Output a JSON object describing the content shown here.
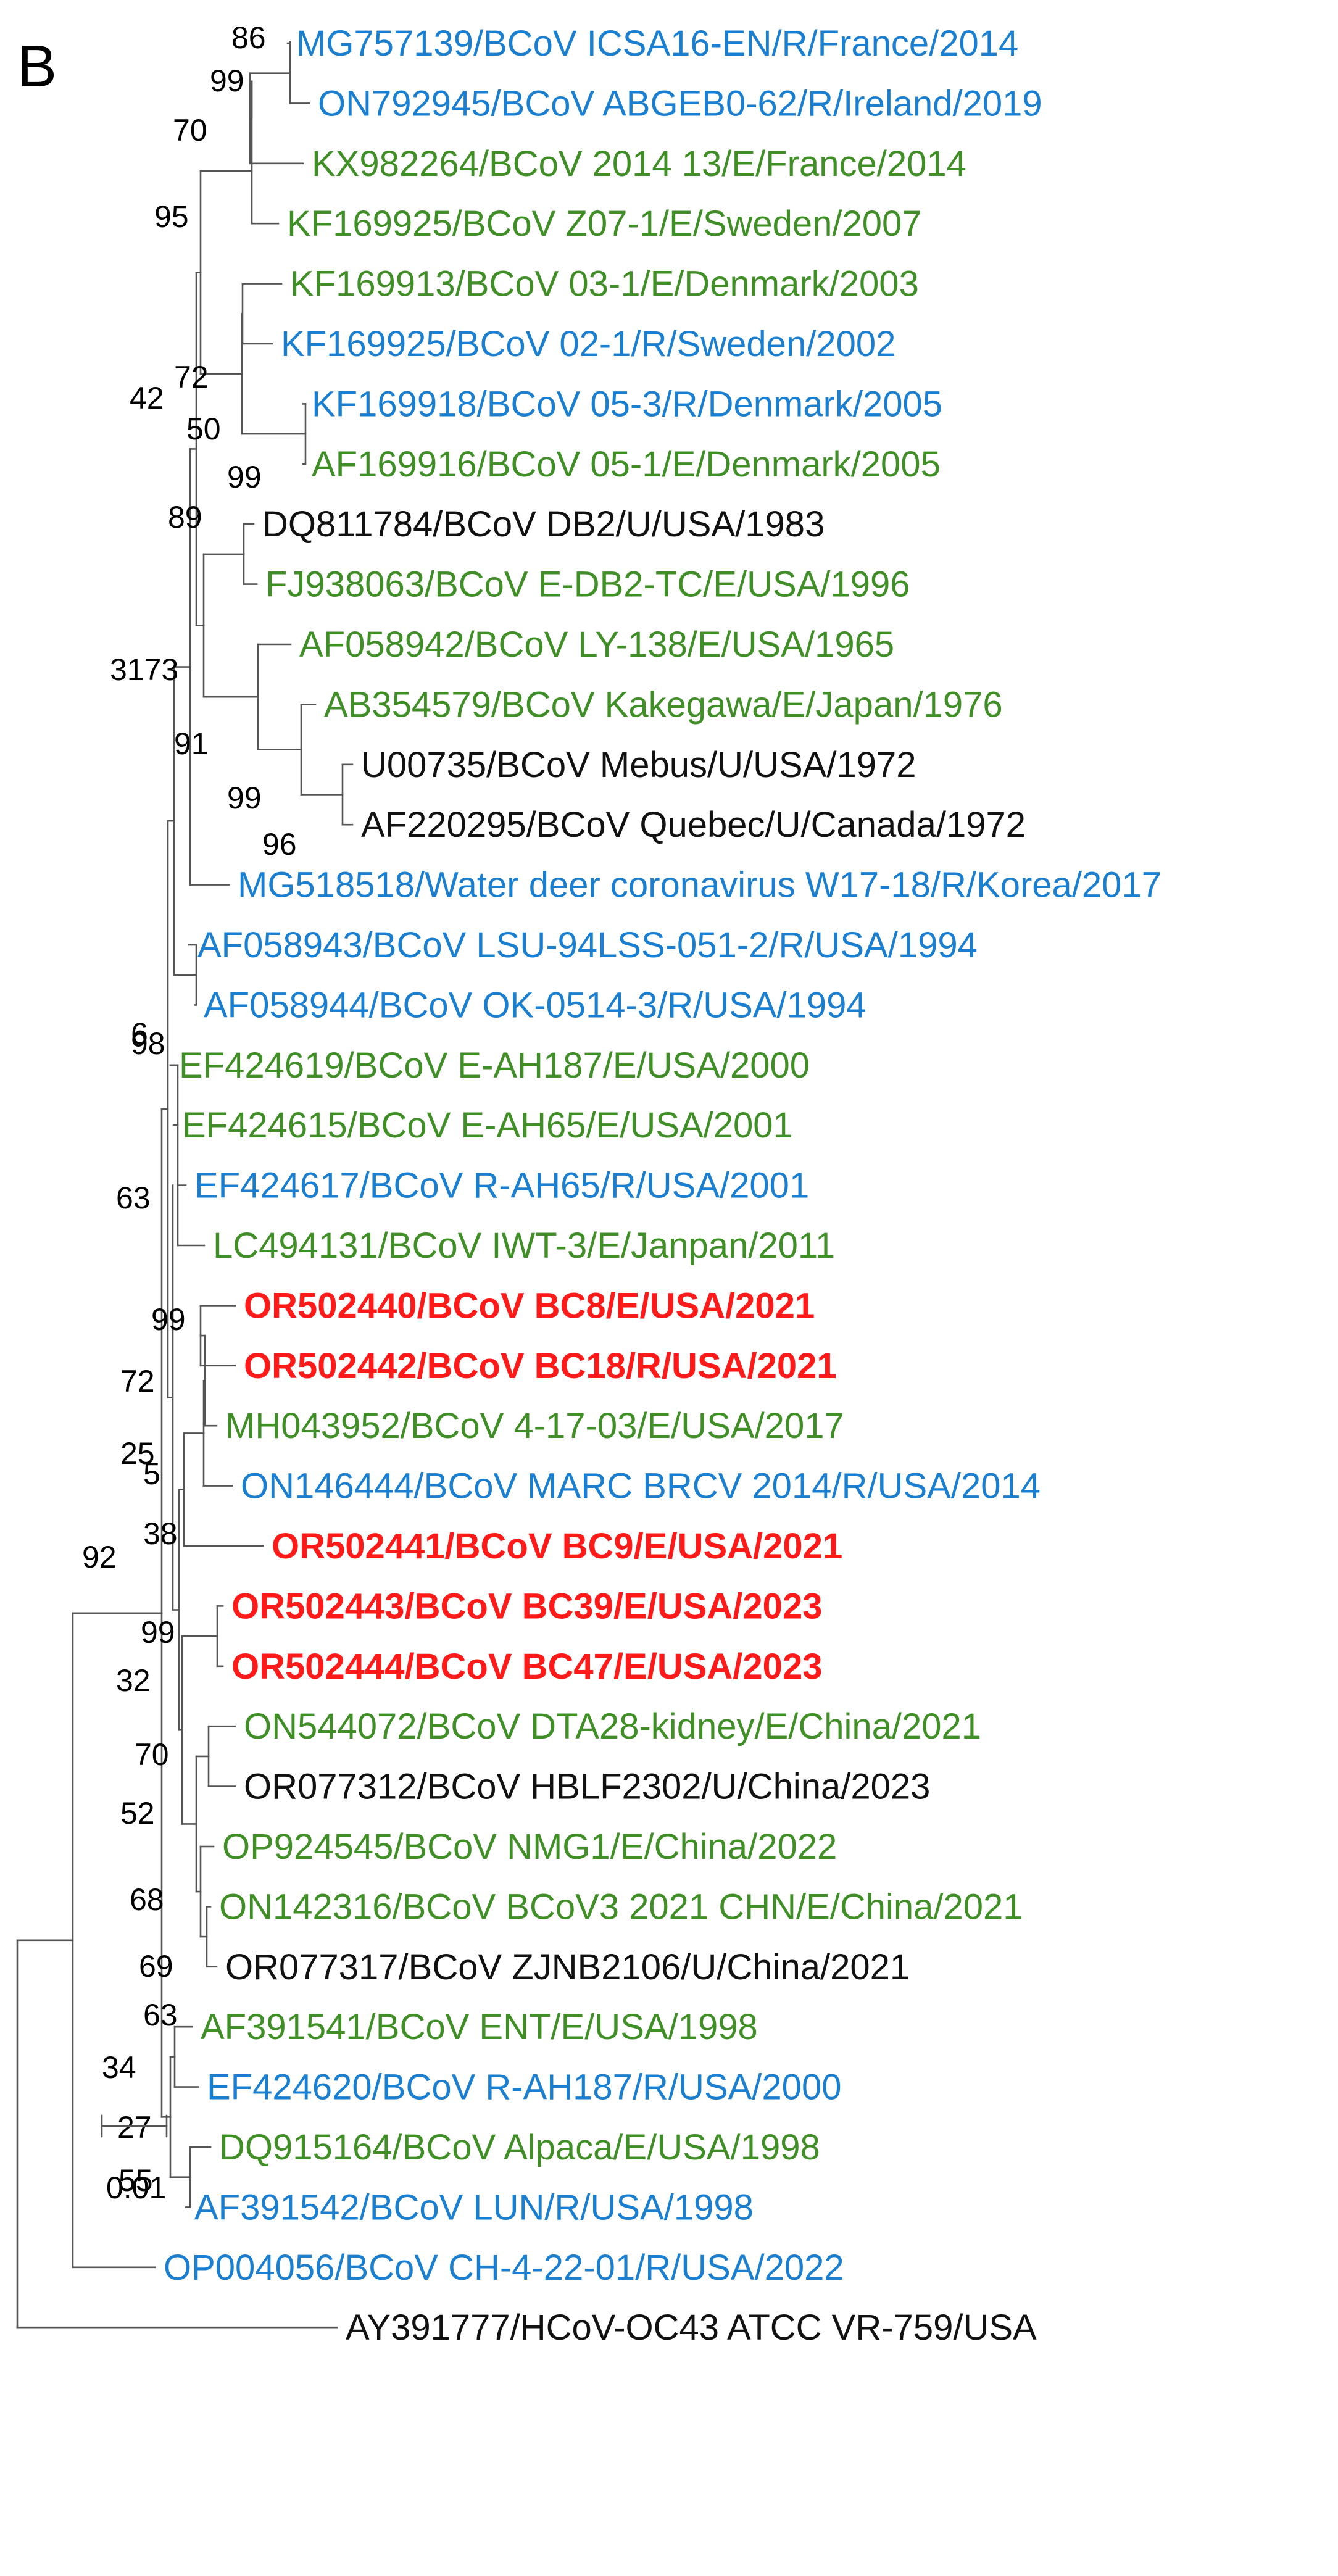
{
  "panel_label": "B",
  "colors": {
    "R": "#1a7fd0",
    "E": "#3f8f26",
    "U": "#111111",
    "new": "#ff1a1a",
    "branch": "#555555"
  },
  "scale_label": "0.01",
  "taxa": [
    {
      "label": "MG757139/BCoV ICSA16-EN/R/France/2014",
      "group": "R"
    },
    {
      "label": "ON792945/BCoV ABGEB0-62/R/Ireland/2019",
      "group": "R"
    },
    {
      "label": "KX982264/BCoV 2014 13/E/France/2014",
      "group": "E"
    },
    {
      "label": "KF169925/BCoV Z07-1/E/Sweden/2007",
      "group": "E"
    },
    {
      "label": "KF169913/BCoV 03-1/E/Denmark/2003",
      "group": "E"
    },
    {
      "label": "KF169925/BCoV 02-1/R/Sweden/2002",
      "group": "R"
    },
    {
      "label": "KF169918/BCoV 05-3/R/Denmark/2005",
      "group": "R"
    },
    {
      "label": "AF169916/BCoV 05-1/E/Denmark/2005",
      "group": "E"
    },
    {
      "label": "DQ811784/BCoV DB2/U/USA/1983",
      "group": "U"
    },
    {
      "label": "FJ938063/BCoV E-DB2-TC/E/USA/1996",
      "group": "E"
    },
    {
      "label": "AF058942/BCoV LY-138/E/USA/1965",
      "group": "E"
    },
    {
      "label": "AB354579/BCoV Kakegawa/E/Japan/1976",
      "group": "E"
    },
    {
      "label": "U00735/BCoV Mebus/U/USA/1972",
      "group": "U"
    },
    {
      "label": "AF220295/BCoV Quebec/U/Canada/1972",
      "group": "U"
    },
    {
      "label": "MG518518/Water deer coronavirus W17-18/R/Korea/2017",
      "group": "R"
    },
    {
      "label": "AF058943/BCoV LSU-94LSS-051-2/R/USA/1994",
      "group": "R"
    },
    {
      "label": "AF058944/BCoV OK-0514-3/R/USA/1994",
      "group": "R"
    },
    {
      "label": "EF424619/BCoV E-AH187/E/USA/2000",
      "group": "E"
    },
    {
      "label": "EF424615/BCoV E-AH65/E/USA/2001",
      "group": "E"
    },
    {
      "label": "EF424617/BCoV R-AH65/R/USA/2001",
      "group": "R"
    },
    {
      "label": "LC494131/BCoV IWT-3/E/Janpan/2011",
      "group": "E"
    },
    {
      "label": "OR502440/BCoV BC8/E/USA/2021",
      "group": "new"
    },
    {
      "label": "OR502442/BCoV BC18/R/USA/2021",
      "group": "new"
    },
    {
      "label": "MH043952/BCoV 4-17-03/E/USA/2017",
      "group": "E"
    },
    {
      "label": "ON146444/BCoV MARC BRCV 2014/R/USA/2014",
      "group": "R"
    },
    {
      "label": "OR502441/BCoV BC9/E/USA/2021",
      "group": "new"
    },
    {
      "label": "OR502443/BCoV BC39/E/USA/2023",
      "group": "new"
    },
    {
      "label": "OR502444/BCoV BC47/E/USA/2023",
      "group": "new"
    },
    {
      "label": "ON544072/BCoV DTA28-kidney/E/China/2021",
      "group": "E"
    },
    {
      "label": "OR077312/BCoV HBLF2302/U/China/2023",
      "group": "U"
    },
    {
      "label": "OP924545/BCoV NMG1/E/China/2022",
      "group": "E"
    },
    {
      "label": "ON142316/BCoV BCoV3 2021 CHN/E/China/2021",
      "group": "E"
    },
    {
      "label": "OR077317/BCoV ZJNB2106/U/China/2021",
      "group": "U"
    },
    {
      "label": "AF391541/BCoV ENT/E/USA/1998",
      "group": "E"
    },
    {
      "label": "EF424620/BCoV R-AH187/R/USA/2000",
      "group": "R"
    },
    {
      "label": "DQ915164/BCoV Alpaca/E/USA/1998",
      "group": "E"
    },
    {
      "label": "AF391542/BCoV LUN/R/USA/1998",
      "group": "R"
    },
    {
      "label": "OP004056/BCoV CH-4-22-01/R/USA/2022",
      "group": "R"
    },
    {
      "label": "AY391777/HCoV-OC43 ATCC VR-759/USA",
      "group": "U"
    }
  ],
  "bootstrap": [
    "86",
    "99",
    "70",
    "95",
    "42",
    "72",
    "50",
    "99",
    "89",
    "3173",
    "91",
    "99",
    "96",
    "6",
    "98",
    "63",
    "99",
    "72",
    "25",
    "5",
    "38",
    "92",
    "99",
    "32",
    "70",
    "52",
    "68",
    "69",
    "63",
    "34",
    "27",
    "55"
  ]
}
